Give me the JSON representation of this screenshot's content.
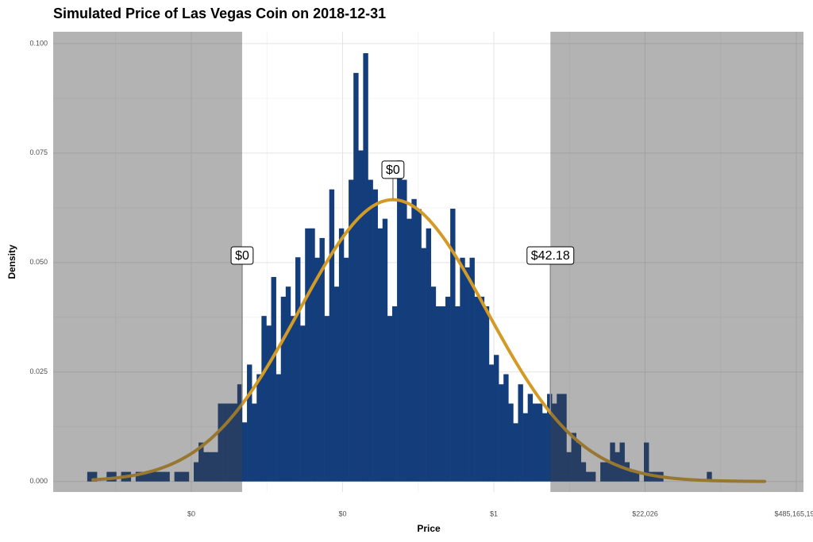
{
  "chart_data": {
    "type": "histogram",
    "title": "Simulated Price of Las Vegas Coin on 2018-12-31",
    "xlabel": "Price",
    "ylabel": "Density",
    "color": "#143d7b",
    "bins": [
      -26.88,
      -26.56,
      -26.24,
      -25.92,
      -25.6,
      -25.28,
      -24.96,
      -24.64,
      -24.32,
      -24,
      -23.68,
      -23.36,
      -23.04,
      -22.72,
      -22.4,
      -22.08,
      -21.76,
      -21.44,
      -21.12,
      -20.8,
      -20.48,
      -20.16,
      -19.84,
      -19.52,
      -19.2,
      -18.88,
      -18.56,
      -18.24,
      -17.92,
      -17.6,
      -17.28,
      -16.96,
      -16.64,
      -16.32,
      -16,
      -15.68,
      -15.36,
      -15.04,
      -14.72,
      -14.4,
      -14.08,
      -13.76,
      -13.44,
      -13.12,
      -12.8,
      -12.48,
      -12.16,
      -11.84,
      -11.52,
      -11.2,
      -10.88,
      -10.56,
      -10.24,
      -9.92,
      -9.6,
      -9.28,
      -8.96,
      -8.64,
      -8.32,
      -8,
      -7.68,
      -7.36,
      -7.04,
      -6.72,
      -6.4,
      -6.08,
      -5.76,
      -5.44,
      -5.12,
      -4.8,
      -4.48,
      -4.16,
      -3.84,
      -3.52,
      -3.2,
      -2.88,
      -2.56,
      -2.24,
      -1.92,
      -1.6,
      -1.28,
      -0.96,
      -0.64,
      -0.32,
      0,
      0.32,
      0.64,
      0.96,
      1.28,
      1.6,
      1.92,
      2.24,
      2.56,
      2.88,
      3.2,
      3.52,
      3.84,
      4.16,
      4.48,
      4.8,
      5.12,
      5.44,
      5.76,
      6.08,
      6.4,
      6.72,
      7.04,
      7.36,
      7.68,
      8,
      8.32,
      8.64,
      8.96,
      9.28,
      9.6,
      9.92,
      10.24,
      10.56,
      10.88,
      11.2,
      11.52,
      11.84,
      12.16,
      12.48,
      12.8,
      13.12,
      13.44,
      13.76,
      14.08,
      14.4,
      14.72,
      15.04,
      15.36,
      15.68,
      16,
      16.32,
      16.64,
      16.96,
      17.28,
      17.6,
      17.92
    ],
    "values": [
      0.0022,
      0.0022,
      0,
      0,
      0.0022,
      0.0022,
      0,
      0.0022,
      0.0022,
      0,
      0.0022,
      0.0022,
      0.0022,
      0.0022,
      0.0022,
      0.0022,
      0.0022,
      0,
      0.0022,
      0.0022,
      0.0022,
      0,
      0.0044,
      0.0089,
      0.0067,
      0.0067,
      0.0067,
      0.0178,
      0.0178,
      0.0178,
      0.0178,
      0.0222,
      0.0135,
      0.0267,
      0.0178,
      0.0245,
      0.0378,
      0.0356,
      0.0467,
      0.0245,
      0.0422,
      0.0445,
      0.0378,
      0.0512,
      0.0356,
      0.0578,
      0.0578,
      0.0511,
      0.0556,
      0.0378,
      0.0667,
      0.0445,
      0.0578,
      0.0511,
      0.0689,
      0.0933,
      0.0756,
      0.0978,
      0.0689,
      0.0667,
      0.0578,
      0.06,
      0.0378,
      0.04,
      0.0733,
      0.0689,
      0.06,
      0.0645,
      0.0622,
      0.0533,
      0.0578,
      0.0445,
      0.04,
      0.04,
      0.0422,
      0.0623,
      0.04,
      0.0511,
      0.0489,
      0.0511,
      0.0422,
      0.0422,
      0.04,
      0.0267,
      0.0289,
      0.0222,
      0.0245,
      0.0178,
      0.0133,
      0.0222,
      0.0156,
      0.02,
      0.0178,
      0.0178,
      0.0156,
      0.02,
      0.0178,
      0.02,
      0.02,
      0.0067,
      0.0111,
      0.0089,
      0.0044,
      0.0022,
      0.0022,
      0,
      0.0044,
      0.0044,
      0.0089,
      0.0067,
      0.0089,
      0.0044,
      0.0022,
      0.0022,
      0,
      0.0089,
      0.0022,
      0.0022,
      0.0022,
      0,
      0,
      0,
      0,
      0,
      0,
      0,
      0,
      0,
      0.0022,
      0,
      0,
      0,
      0,
      0,
      0,
      0,
      0,
      0,
      0,
      0,
      0.0022
    ],
    "curve": {
      "color": "#d39b25",
      "mean": -6.67,
      "sd": 6.2,
      "range": [
        -26.5,
        17.9
      ]
    },
    "interval": [
      -16.64,
      3.74
    ],
    "annotations": [
      {
        "label": "$0",
        "x": -16.64,
        "y": 0.0516
      },
      {
        "label": "$0",
        "x": -6.67,
        "y": 0.0712
      },
      {
        "label": "$42.18",
        "x": 3.74,
        "y": 0.0516
      }
    ],
    "xlim": [
      -29.13,
      20.47
    ],
    "ylim": [
      -0.0024,
      0.1027
    ],
    "xticks": [
      {
        "value": -20,
        "label": "$0"
      },
      {
        "value": -10,
        "label": "$0"
      },
      {
        "value": 0,
        "label": "$1"
      },
      {
        "value": 10,
        "label": "$22,026"
      },
      {
        "value": 20,
        "label": "$485,165,195"
      }
    ],
    "yticks": [
      {
        "value": 0,
        "label": "0.000"
      },
      {
        "value": 0.025,
        "label": "0.025"
      },
      {
        "value": 0.05,
        "label": "0.050"
      },
      {
        "value": 0.075,
        "label": "0.075"
      },
      {
        "value": 0.1,
        "label": "0.100"
      }
    ],
    "minor_xticks": [
      -25,
      -15,
      -5,
      5,
      15
    ],
    "minor_yticks": [
      0.0125,
      0.0375,
      0.0625,
      0.0875
    ],
    "grid": true
  }
}
